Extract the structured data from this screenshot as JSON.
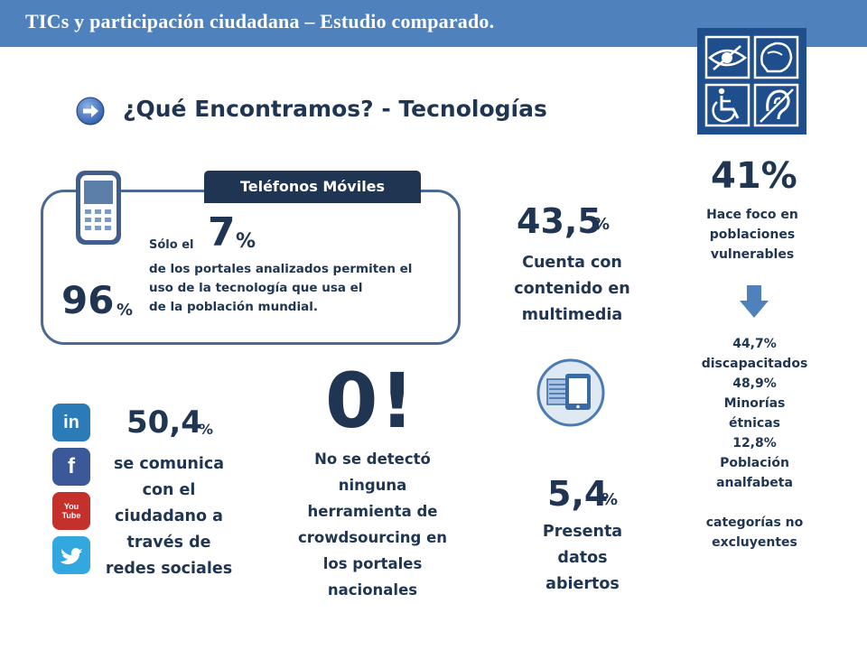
{
  "header": {
    "title": "TICs y participación ciudadana – Estudio comparado."
  },
  "subtitle": "¿Qué Encontramos? - Tecnologías",
  "mobile": {
    "tab_label": "Teléfonos Móviles",
    "solo_label": "Sólo el",
    "percent_value": "7",
    "percent_sign": "%",
    "line1": "de los portales analizados permiten el",
    "line2": "uso de la tecnología que usa el",
    "line3": "de la población mundial.",
    "population_value": "96",
    "population_sign": "%"
  },
  "social": {
    "value": "50,4",
    "sign": "%",
    "lines": [
      "se comunica",
      "con el",
      "ciudadano a",
      "través de",
      "redes sociales"
    ],
    "icons": [
      {
        "name": "linkedin-icon",
        "glyph": "in",
        "color": "#2b7bb9"
      },
      {
        "name": "facebook-icon",
        "glyph": "f",
        "color": "#3b5998"
      },
      {
        "name": "youtube-icon",
        "glyph": "You Tube",
        "color": "#c4302b"
      },
      {
        "name": "twitter-icon",
        "glyph": "🐦",
        "color": "#33a7e0"
      }
    ]
  },
  "crowdsourcing": {
    "value": "0!",
    "lines": [
      "No se detectó",
      "ninguna",
      "herramienta de",
      "crowdsourcing en",
      "los portales",
      "nacionales"
    ]
  },
  "multimedia": {
    "value": "43,5",
    "sign": "%",
    "lines": [
      "Cuenta con",
      "contenido en",
      "multimedia"
    ]
  },
  "open_data": {
    "value": "5,4",
    "sign": "%",
    "lines": [
      "Presenta",
      "datos",
      "abiertos"
    ]
  },
  "vulnerable": {
    "value": "41%",
    "lines": [
      "Hace foco en",
      "poblaciones",
      "vulnerables"
    ],
    "stats": [
      "44,7%",
      "discapacitados",
      "48,9%",
      "Minorías",
      "étnicas",
      "12,8%",
      "Población",
      "analfabeta"
    ],
    "note": [
      "categorías no",
      "excluyentes"
    ]
  },
  "colors": {
    "header": "#4f81bd",
    "dark_blue": "#1f3552",
    "accent": "#1f4e8c"
  }
}
